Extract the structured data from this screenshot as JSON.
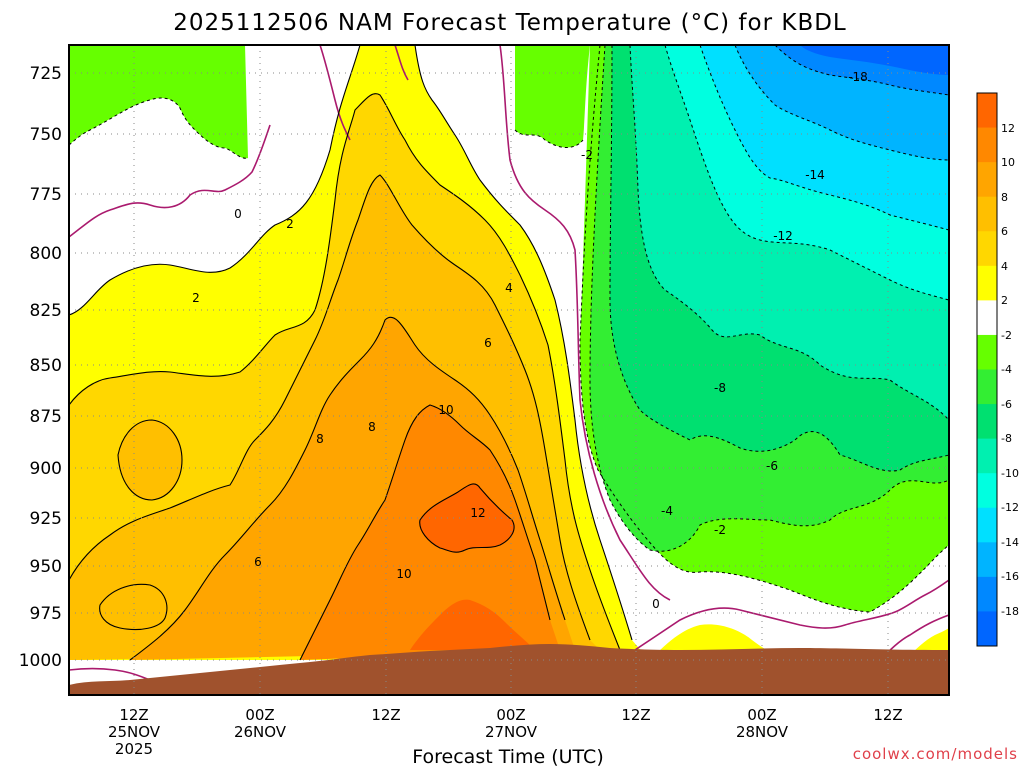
{
  "chart_data": {
    "type": "heatmap",
    "title": "2025112506 NAM Forecast Temperature (°C) for KBDL",
    "xlabel": "Forecast Time (UTC)",
    "ylabel": "",
    "credit": "coolwx.com/models",
    "ylim": [
      1013,
      712
    ],
    "y_ticks": [
      "725",
      "750",
      "775",
      "800",
      "825",
      "850",
      "875",
      "900",
      "925",
      "950",
      "975",
      "1000"
    ],
    "x_ticks": [
      {
        "line1": "12Z",
        "line2": "25NOV",
        "line3": "2025"
      },
      {
        "line1": "00Z",
        "line2": "26NOV",
        "line3": ""
      },
      {
        "line1": "12Z",
        "line2": "",
        "line3": ""
      },
      {
        "line1": "00Z",
        "line2": "27NOV",
        "line3": ""
      },
      {
        "line1": "12Z",
        "line2": "",
        "line3": ""
      },
      {
        "line1": "00Z",
        "line2": "28NOV",
        "line3": ""
      },
      {
        "line1": "12Z",
        "line2": "",
        "line3": ""
      }
    ],
    "colorbar": {
      "labels": [
        "12",
        "10",
        "8",
        "6",
        "4",
        "2",
        "-2",
        "-4",
        "-6",
        "-8",
        "-10",
        "-12",
        "-14",
        "-16",
        "-18"
      ],
      "colors": [
        "#ff6600",
        "#ff8800",
        "#ffa500",
        "#ffbf00",
        "#ffd700",
        "#ffff00",
        "#ffffff",
        "#66ff00",
        "#33ee33",
        "#00e070",
        "#00f0b0",
        "#00ffe0",
        "#00e0ff",
        "#00b4ff",
        "#0088ff",
        "#0066ff"
      ]
    },
    "contour_labels": [
      "-18",
      "-14",
      "-12",
      "-8",
      "-6",
      "-4",
      "-2",
      "0",
      "2",
      "4",
      "6",
      "8",
      "10",
      "12"
    ],
    "field_summary": {
      "warm_core": "up to about 12°C near 925 mb around 26NOV 18Z",
      "freezing_line": "0°C near 975 mb around 27NOV 12Z",
      "cold_min": "about -18°C near 725 mb late 28NOV"
    }
  }
}
